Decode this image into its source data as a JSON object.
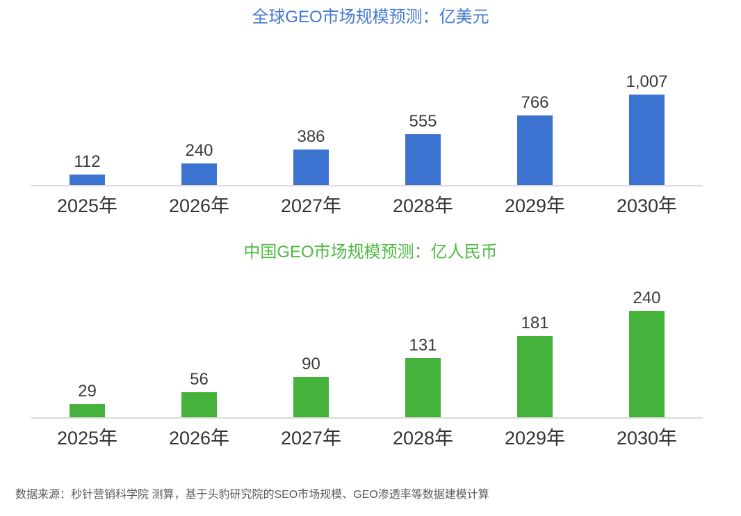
{
  "page": {
    "background": "#ffffff"
  },
  "chart_data": [
    {
      "type": "bar",
      "title": "全球GEO市场规模预测：亿美元",
      "unit": "亿美元",
      "categories": [
        "2025年",
        "2026年",
        "2027年",
        "2028年",
        "2029年",
        "2030年"
      ],
      "values": [
        112,
        240,
        386,
        555,
        766,
        1007
      ],
      "labels": [
        "112",
        "240",
        "386",
        "555",
        "766",
        "1,007"
      ],
      "bar_color": "#3d73d0",
      "title_color": "#4477d4",
      "xlabel": "",
      "ylabel": "",
      "ylim": [
        0,
        1100
      ],
      "grid": false,
      "legend": "none",
      "value_labels_shown": true
    },
    {
      "type": "bar",
      "title": "中国GEO市场规模预测：亿人民币",
      "unit": "亿人民币",
      "categories": [
        "2025年",
        "2026年",
        "2027年",
        "2028年",
        "2029年",
        "2030年"
      ],
      "values": [
        29,
        56,
        90,
        131,
        181,
        240
      ],
      "labels": [
        "29",
        "56",
        "90",
        "131",
        "181",
        "240"
      ],
      "bar_color": "#45b23c",
      "title_color": "#4fb743",
      "xlabel": "",
      "ylabel": "",
      "ylim": [
        0,
        260
      ],
      "grid": false,
      "legend": "none",
      "value_labels_shown": true
    }
  ],
  "footer": {
    "text": "数据来源：秒针营销科学院 测算，基于头豹研究院的SEO市场规模、GEO渗透率等数据建模计算"
  },
  "colors": {
    "axis_line": "#dbd9d9",
    "value_label": "#3b3b3b",
    "axis_label": "#333333",
    "source_note": "#595959"
  }
}
